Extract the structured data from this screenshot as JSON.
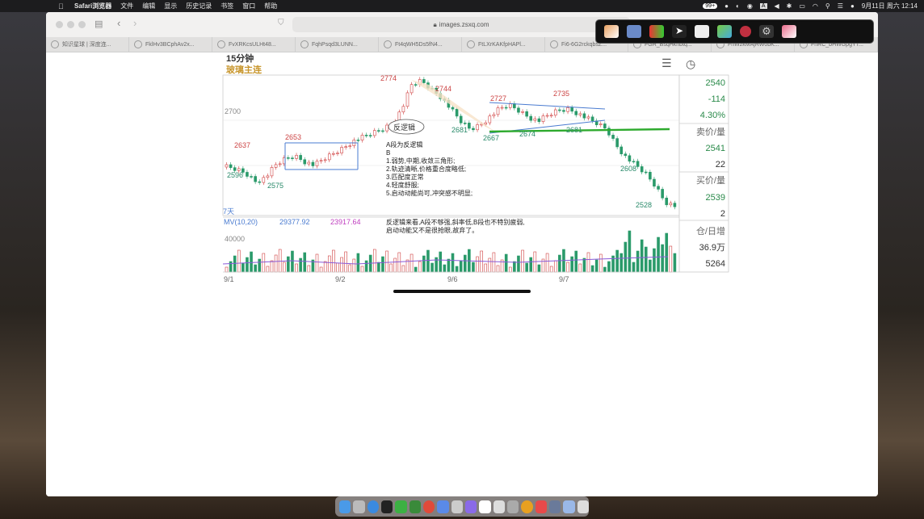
{
  "menubar": {
    "app": "Safari浏览器",
    "items": [
      "文件",
      "编辑",
      "显示",
      "历史记录",
      "书签",
      "窗口",
      "帮助"
    ],
    "badge": "99+",
    "datetime": "9月11日 周六 12:14",
    "input_indicator": "A"
  },
  "browser": {
    "address": "images.zsxq.com",
    "tabs": [
      "知识星球 | 深度连...",
      "FklHv3BCphAv2x...",
      "FvXRKcsULHt48...",
      "FqhPsqd3LUNN...",
      "Ft4qWH5Ds5fN4...",
      "FtLXrKAKfpHAPl...",
      "Fi6-6G2rckqbsZ...",
      "FGR_BsqHkhbtq...",
      "FnWzkMAjRW0bK...",
      "FnRC_bHWGpgYT..."
    ]
  },
  "chart": {
    "timeframe": "15分钟",
    "instrument": "玻璃主连",
    "quote": {
      "price": "2540",
      "change": "-114",
      "pct": "4.30%",
      "ask_label": "卖价/量",
      "ask_price": "2541",
      "ask_vol": "22",
      "bid_label": "买价/量",
      "bid_price": "2539",
      "bid_vol": "2",
      "oi_label": "仓/日增",
      "oi": "36.9万",
      "oi_change": "5264"
    },
    "axis": {
      "y_label": "2700",
      "vol_label": "40000",
      "dates": [
        "9/1",
        "9/2",
        "9/6",
        "9/7"
      ],
      "days": "7天"
    },
    "mv": {
      "label": "MV(10,20)",
      "mv10": "29377.92",
      "mv20": "23917.64"
    },
    "price_labels": [
      "2637",
      "2596",
      "2653",
      "2575",
      "2774",
      "2744",
      "2681",
      "2667",
      "2674",
      "2727",
      "2735",
      "2681",
      "2608",
      "2528"
    ],
    "annotation_bubble": "反逻辑",
    "notes": [
      "A段为反逻辑",
      "B",
      "1.弱势,中期,收敛三角形;",
      "2.轨迹清晰,价格重合度略低;",
      "3.匹配度正常",
      "4.轻度舒服;",
      "5.启动动能尚可,冲突感不明显;"
    ],
    "notes2": [
      "反逻辑来看,A段不够强,斜率低,B段也不特别疲弱,",
      "启动动能又不是很抢眼,故弃了。"
    ]
  }
}
